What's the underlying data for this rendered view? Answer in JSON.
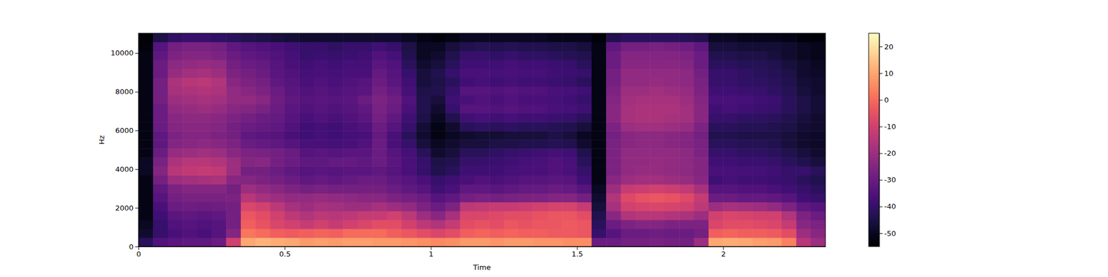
{
  "chart_data": {
    "type": "heatmap",
    "x_label": "Time",
    "y_label": "Hz",
    "color": "magma",
    "xlim": [
      0,
      2.35
    ],
    "xticks": [
      0,
      0.5,
      1,
      1.5,
      2
    ],
    "ylim": [
      0,
      11025
    ],
    "yticks": [
      0,
      2000,
      4000,
      6000,
      8000,
      10000
    ],
    "colorbar": {
      "range": [
        -55,
        25
      ],
      "ticks": [
        -50,
        -40,
        -30,
        -20,
        -10,
        0,
        10,
        20
      ]
    },
    "times": [
      0,
      0.05,
      0.1,
      0.15,
      0.2,
      0.25,
      0.3,
      0.35,
      0.4,
      0.45,
      0.5,
      0.55,
      0.6,
      0.65,
      0.7,
      0.75,
      0.8,
      0.85,
      0.9,
      0.95,
      1.0,
      1.05,
      1.1,
      1.15,
      1.2,
      1.25,
      1.3,
      1.35,
      1.4,
      1.45,
      1.5,
      1.55,
      1.6,
      1.65,
      1.7,
      1.75,
      1.8,
      1.85,
      1.9,
      1.95,
      2.0,
      2.05,
      2.1,
      2.15,
      2.2,
      2.25,
      2.3
    ],
    "frequencies": [
      0,
      460,
      920,
      1380,
      1840,
      2300,
      2760,
      3220,
      3680,
      4140,
      4600,
      5060,
      5520,
      5980,
      6440,
      6900,
      7360,
      7820,
      8280,
      8740,
      9200,
      9660,
      10120,
      10580
    ],
    "cells": [
      [
        -42,
        -48,
        -50,
        -52,
        -52,
        -52,
        -52,
        -52,
        -50,
        -50,
        -52,
        -52,
        -52,
        -52,
        -52,
        -52,
        -52,
        -52,
        -52,
        -52,
        -52,
        -52,
        -53,
        -54
      ],
      [
        -35,
        -40,
        -40,
        -38,
        -36,
        -34,
        -32,
        -28,
        -25,
        -27,
        -30,
        -32,
        -32,
        -30,
        -30,
        -30,
        -28,
        -28,
        -28,
        -30,
        -30,
        -32,
        -34,
        -45
      ],
      [
        -33,
        -36,
        -35,
        -33,
        -30,
        -28,
        -26,
        -20,
        -15,
        -17,
        -21,
        -25,
        -26,
        -25,
        -24,
        -22,
        -20,
        -18,
        -17,
        -21,
        -23,
        -26,
        -28,
        -41
      ],
      [
        -32,
        -35,
        -34,
        -32,
        -29,
        -27,
        -25,
        -19,
        -13,
        -15,
        -20,
        -24,
        -25,
        -24,
        -23,
        -21,
        -19,
        -17,
        -15,
        -19,
        -22,
        -25,
        -27,
        -40
      ],
      [
        -32,
        -36,
        -35,
        -33,
        -30,
        -27,
        -25,
        -18,
        -12,
        -15,
        -19,
        -23,
        -25,
        -24,
        -23,
        -20,
        -18,
        -16,
        -14,
        -18,
        -21,
        -25,
        -27,
        -40
      ],
      [
        -30,
        -34,
        -34,
        -32,
        -29,
        -27,
        -25,
        -17,
        -13,
        -16,
        -20,
        -24,
        -26,
        -25,
        -24,
        -21,
        -19,
        -17,
        -16,
        -20,
        -22,
        -26,
        -28,
        -41
      ],
      [
        -10,
        -25,
        -28,
        -28,
        -28,
        -26,
        -28,
        -24,
        -20,
        -20,
        -24,
        -26,
        -28,
        -28,
        -26,
        -24,
        -22,
        -22,
        -24,
        -26,
        -28,
        -30,
        -32,
        -42
      ],
      [
        10,
        2,
        -2,
        -4,
        -8,
        -15,
        -20,
        -25,
        -28,
        -25,
        -26,
        -30,
        -32,
        -30,
        -28,
        -25,
        -22,
        -24,
        -26,
        -28,
        -30,
        -32,
        -34,
        -44
      ],
      [
        12,
        0,
        -5,
        -6,
        -10,
        -18,
        -22,
        -26,
        -28,
        -24,
        -27,
        -31,
        -33,
        -31,
        -30,
        -27,
        -24,
        -26,
        -28,
        -30,
        -31,
        -33,
        -35,
        -45
      ],
      [
        11,
        -2,
        -8,
        -10,
        -14,
        -20,
        -24,
        -28,
        -30,
        -28,
        -28,
        -32,
        -34,
        -32,
        -31,
        -30,
        -29,
        -30,
        -32,
        -33,
        -34,
        -35,
        -36,
        -46
      ],
      [
        10,
        -3,
        -10,
        -14,
        -18,
        -22,
        -26,
        -30,
        -32,
        -30,
        -30,
        -34,
        -36,
        -35,
        -34,
        -33,
        -32,
        -33,
        -34,
        -35,
        -36,
        -37,
        -38,
        -47
      ],
      [
        8,
        -2,
        -12,
        -16,
        -20,
        -22,
        -28,
        -32,
        -34,
        -32,
        -34,
        -36,
        -38,
        -38,
        -36,
        -35,
        -34,
        -35,
        -36,
        -37,
        -38,
        -40,
        -40,
        -48
      ],
      [
        9,
        -1,
        -10,
        -14,
        -18,
        -21,
        -27,
        -31,
        -33,
        -32,
        -33,
        -36,
        -37,
        -37,
        -35,
        -34,
        -33,
        -34,
        -35,
        -36,
        -37,
        -39,
        -40,
        -48
      ],
      [
        8,
        -2,
        -12,
        -15,
        -19,
        -22,
        -28,
        -32,
        -34,
        -31,
        -34,
        -37,
        -38,
        -38,
        -36,
        -35,
        -34,
        -35,
        -36,
        -37,
        -38,
        -40,
        -41,
        -48
      ],
      [
        9,
        0,
        -10,
        -14,
        -20,
        -23,
        -28,
        -31,
        -33,
        -31,
        -33,
        -36,
        -37,
        -36,
        -35,
        -34,
        -33,
        -34,
        -35,
        -36,
        -37,
        -39,
        -40,
        -48
      ],
      [
        9,
        0,
        -8,
        -12,
        -20,
        -24,
        -28,
        -30,
        -33,
        -32,
        -33,
        -35,
        -36,
        -35,
        -33,
        -32,
        -30,
        -33,
        -34,
        -36,
        -37,
        -38,
        -40,
        -48
      ],
      [
        8,
        0,
        -6,
        -12,
        -18,
        -24,
        -28,
        -30,
        -32,
        -30,
        -30,
        -30,
        -31,
        -30,
        -28,
        -27,
        -26,
        -28,
        -30,
        -31,
        -33,
        -35,
        -38,
        -48
      ],
      [
        8,
        -2,
        -6,
        -10,
        -20,
        -26,
        -30,
        -32,
        -34,
        -33,
        -34,
        -36,
        -36,
        -34,
        -32,
        -30,
        -29,
        -31,
        -33,
        -34,
        -35,
        -37,
        -40,
        -48
      ],
      [
        7,
        -4,
        -10,
        -14,
        -22,
        -28,
        -32,
        -34,
        -36,
        -36,
        -37,
        -40,
        -42,
        -40,
        -38,
        -36,
        -35,
        -37,
        -38,
        -40,
        -42,
        -44,
        -45,
        -50
      ],
      [
        6,
        -6,
        -14,
        -20,
        -26,
        -30,
        -34,
        -36,
        -40,
        -40,
        -42,
        -46,
        -48,
        -47,
        -45,
        -44,
        -44,
        -45,
        -46,
        -46,
        -48,
        -50,
        -50,
        -52
      ],
      [
        5,
        -8,
        -16,
        -24,
        -30,
        -34,
        -38,
        -40,
        -44,
        -45,
        -48,
        -50,
        -52,
        -52,
        -50,
        -48,
        -46,
        -44,
        -45,
        -44,
        -46,
        -48,
        -50,
        -53
      ],
      [
        6,
        -6,
        -12,
        -18,
        -26,
        -32,
        -36,
        -38,
        -42,
        -44,
        -46,
        -48,
        -50,
        -48,
        -44,
        -40,
        -38,
        -40,
        -42,
        -40,
        -42,
        -44,
        -46,
        -52
      ],
      [
        8,
        -2,
        -6,
        -8,
        -14,
        -28,
        -32,
        -36,
        -38,
        -40,
        -42,
        -46,
        -48,
        -42,
        -38,
        -34,
        -36,
        -34,
        -38,
        -36,
        -38,
        -40,
        -44,
        -50
      ],
      [
        8,
        -1,
        -5,
        -8,
        -13,
        -27,
        -32,
        -35,
        -38,
        -40,
        -42,
        -46,
        -47,
        -41,
        -37,
        -34,
        -35,
        -34,
        -37,
        -36,
        -38,
        -40,
        -43,
        -50
      ],
      [
        7,
        -2,
        -6,
        -7,
        -12,
        -28,
        -33,
        -36,
        -38,
        -39,
        -41,
        -45,
        -47,
        -42,
        -38,
        -35,
        -36,
        -35,
        -38,
        -37,
        -38,
        -41,
        -44,
        -50
      ],
      [
        8,
        -1,
        -4,
        -6,
        -12,
        -27,
        -32,
        -35,
        -37,
        -38,
        -40,
        -45,
        -46,
        -41,
        -37,
        -34,
        -35,
        -34,
        -37,
        -36,
        -37,
        -40,
        -43,
        -50
      ],
      [
        8,
        -2,
        -5,
        -6,
        -11,
        -26,
        -31,
        -34,
        -36,
        -37,
        -39,
        -44,
        -46,
        -42,
        -38,
        -35,
        -36,
        -35,
        -38,
        -37,
        -38,
        -41,
        -44,
        -50
      ],
      [
        7,
        -2,
        -4,
        -5,
        -10,
        -26,
        -31,
        -34,
        -36,
        -36,
        -38,
        -44,
        -46,
        -42,
        -38,
        -35,
        -36,
        -35,
        -38,
        -37,
        -38,
        -41,
        -44,
        -50
      ],
      [
        7,
        -3,
        -4,
        -4,
        -9,
        -25,
        -30,
        -33,
        -35,
        -35,
        -37,
        -43,
        -45,
        -43,
        -39,
        -36,
        -37,
        -36,
        -39,
        -38,
        -39,
        -42,
        -45,
        -51
      ],
      [
        6,
        -3,
        -3,
        -4,
        -9,
        -25,
        -31,
        -34,
        -36,
        -36,
        -38,
        -44,
        -46,
        -44,
        -40,
        -37,
        -38,
        -37,
        -40,
        -39,
        -40,
        -43,
        -45,
        -51
      ],
      [
        6,
        -4,
        -4,
        -6,
        -12,
        -28,
        -34,
        -38,
        -40,
        -42,
        -44,
        -48,
        -50,
        -46,
        -42,
        -38,
        -40,
        -38,
        -42,
        -40,
        -42,
        -44,
        -46,
        -51
      ],
      [
        -30,
        -40,
        -42,
        -44,
        -46,
        -48,
        -50,
        -52,
        -52,
        -52,
        -52,
        -52,
        -52,
        -52,
        -52,
        -52,
        -52,
        -52,
        -52,
        -52,
        -52,
        -52,
        -52,
        -54
      ],
      [
        -30,
        -34,
        -30,
        -24,
        -18,
        -16,
        -20,
        -24,
        -26,
        -26,
        -26,
        -27,
        -28,
        -26,
        -24,
        -24,
        -25,
        -26,
        -28,
        -28,
        -30,
        -30,
        -32,
        -44
      ],
      [
        -28,
        -30,
        -26,
        -16,
        -10,
        -7,
        -12,
        -20,
        -22,
        -22,
        -22,
        -24,
        -24,
        -20,
        -18,
        -18,
        -19,
        -20,
        -22,
        -22,
        -24,
        -25,
        -28,
        -42
      ],
      [
        -28,
        -30,
        -25,
        -15,
        -9,
        -5,
        -11,
        -19,
        -21,
        -22,
        -22,
        -23,
        -23,
        -19,
        -17,
        -17,
        -18,
        -20,
        -22,
        -22,
        -24,
        -25,
        -28,
        -42
      ],
      [
        -27,
        -29,
        -25,
        -15,
        -8,
        -4,
        -10,
        -19,
        -21,
        -21,
        -22,
        -23,
        -23,
        -19,
        -17,
        -17,
        -18,
        -19,
        -21,
        -22,
        -24,
        -25,
        -27,
        -42
      ],
      [
        -28,
        -30,
        -26,
        -16,
        -9,
        -5,
        -11,
        -20,
        -22,
        -22,
        -22,
        -24,
        -24,
        -20,
        -18,
        -17,
        -18,
        -20,
        -22,
        -22,
        -24,
        -25,
        -28,
        -42
      ],
      [
        -28,
        -30,
        -26,
        -17,
        -10,
        -7,
        -13,
        -21,
        -23,
        -23,
        -23,
        -25,
        -25,
        -21,
        -19,
        -19,
        -20,
        -21,
        -23,
        -23,
        -25,
        -26,
        -29,
        -43
      ],
      [
        -20,
        -28,
        -26,
        -20,
        -14,
        -12,
        -18,
        -24,
        -25,
        -25,
        -26,
        -27,
        -28,
        -26,
        -24,
        -24,
        -25,
        -26,
        -27,
        -28,
        -30,
        -30,
        -32,
        -44
      ],
      [
        10,
        -2,
        -8,
        -10,
        -20,
        -30,
        -34,
        -38,
        -36,
        -38,
        -40,
        -42,
        -44,
        -42,
        -40,
        -38,
        -36,
        -38,
        -40,
        -40,
        -42,
        -44,
        -46,
        -50
      ],
      [
        11,
        -1,
        -6,
        -8,
        -18,
        -30,
        -34,
        -37,
        -36,
        -38,
        -40,
        -42,
        -44,
        -42,
        -40,
        -37,
        -36,
        -38,
        -40,
        -40,
        -42,
        -44,
        -46,
        -50
      ],
      [
        10,
        -2,
        -6,
        -9,
        -19,
        -31,
        -35,
        -38,
        -37,
        -39,
        -41,
        -43,
        -45,
        -43,
        -41,
        -38,
        -37,
        -39,
        -41,
        -41,
        -43,
        -45,
        -47,
        -51
      ],
      [
        9,
        -2,
        -7,
        -10,
        -20,
        -31,
        -35,
        -38,
        -37,
        -39,
        -41,
        -43,
        -45,
        -43,
        -41,
        -39,
        -38,
        -40,
        -41,
        -42,
        -43,
        -45,
        -47,
        -51
      ],
      [
        8,
        -3,
        -8,
        -10,
        -22,
        -32,
        -36,
        -39,
        -38,
        -40,
        -42,
        -44,
        -45,
        -44,
        -42,
        -40,
        -39,
        -41,
        -42,
        -43,
        -44,
        -46,
        -47,
        -51
      ],
      [
        4,
        -6,
        -12,
        -16,
        -26,
        -34,
        -38,
        -40,
        -40,
        -42,
        -44,
        -46,
        -46,
        -45,
        -44,
        -42,
        -42,
        -43,
        -44,
        -45,
        -46,
        -48,
        -48,
        -52
      ],
      [
        -15,
        -20,
        -24,
        -26,
        -32,
        -38,
        -40,
        -42,
        -40,
        -44,
        -46,
        -48,
        -48,
        -47,
        -46,
        -45,
        -45,
        -46,
        -47,
        -48,
        -48,
        -50,
        -50,
        -53
      ],
      [
        -20,
        -24,
        -26,
        -30,
        -34,
        -40,
        -42,
        -44,
        -42,
        -46,
        -48,
        -49,
        -49,
        -48,
        -48,
        -47,
        -47,
        -48,
        -48,
        -49,
        -50,
        -51,
        -51,
        -54
      ]
    ]
  }
}
